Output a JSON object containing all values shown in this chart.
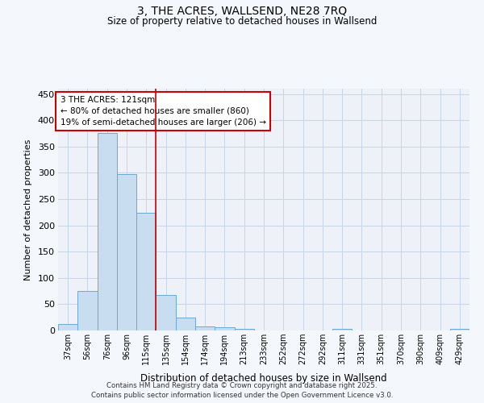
{
  "title_line1": "3, THE ACRES, WALLSEND, NE28 7RQ",
  "title_line2": "Size of property relative to detached houses in Wallsend",
  "xlabel": "Distribution of detached houses by size in Wallsend",
  "ylabel": "Number of detached properties",
  "categories": [
    "37sqm",
    "56sqm",
    "76sqm",
    "96sqm",
    "115sqm",
    "135sqm",
    "154sqm",
    "174sqm",
    "194sqm",
    "213sqm",
    "233sqm",
    "252sqm",
    "272sqm",
    "292sqm",
    "311sqm",
    "331sqm",
    "351sqm",
    "370sqm",
    "390sqm",
    "409sqm",
    "429sqm"
  ],
  "values": [
    13,
    75,
    375,
    298,
    224,
    68,
    24,
    8,
    6,
    3,
    0,
    0,
    0,
    0,
    3,
    0,
    0,
    0,
    0,
    0,
    3
  ],
  "bar_color": "#c9ddf0",
  "bar_edge_color": "#6aaad4",
  "grid_color": "#c5d5e8",
  "vline_color": "#cc0000",
  "annotation_text": "3 THE ACRES: 121sqm\n← 80% of detached houses are smaller (860)\n19% of semi-detached houses are larger (206) →",
  "annotation_box_color": "#cc0000",
  "ylim": [
    0,
    460
  ],
  "yticks": [
    0,
    50,
    100,
    150,
    200,
    250,
    300,
    350,
    400,
    450
  ],
  "footer_line1": "Contains HM Land Registry data © Crown copyright and database right 2025.",
  "footer_line2": "Contains public sector information licensed under the Open Government Licence v3.0.",
  "bg_color": "#f4f7fb",
  "plot_bg_color": "#eef2f8"
}
